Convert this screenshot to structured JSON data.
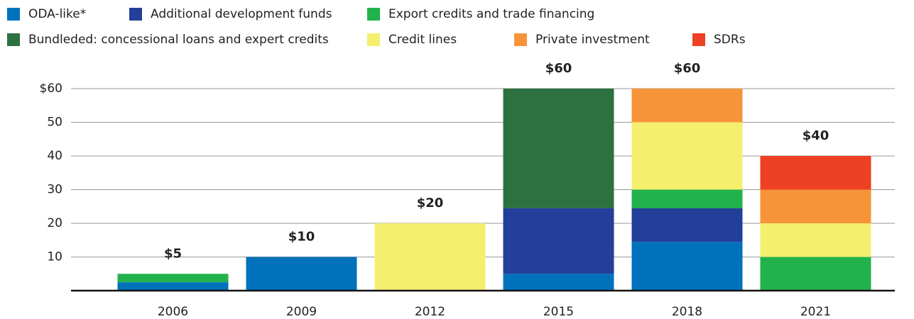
{
  "chart_data": {
    "type": "stacked_bar",
    "categories": [
      "2006",
      "2009",
      "2012",
      "2015",
      "2018",
      "2021"
    ],
    "series": [
      {
        "name": "ODA-like*",
        "color": "#0072bc",
        "values": [
          2.5,
          10,
          0,
          5,
          14.5,
          0
        ]
      },
      {
        "name": "Additional development funds",
        "color": "#233f99",
        "values": [
          0,
          0,
          0,
          19.5,
          10,
          0
        ]
      },
      {
        "name": "Export credits and trade financing",
        "color": "#22b24c",
        "values": [
          2.5,
          0,
          0,
          0,
          5.5,
          10
        ]
      },
      {
        "name": "Bundleded: concessional loans and expert credits",
        "color": "#2d7140",
        "values": [
          0,
          0,
          0,
          35.5,
          0,
          0
        ]
      },
      {
        "name": "Credit lines",
        "color": "#f5ef70",
        "values": [
          0,
          0,
          20,
          0,
          20,
          10
        ]
      },
      {
        "name": "Private investment",
        "color": "#f7943a",
        "values": [
          0,
          0,
          0,
          0,
          10,
          10
        ]
      },
      {
        "name": "SDRs",
        "color": "#ee4123",
        "values": [
          0,
          0,
          0,
          0,
          0,
          10
        ]
      }
    ],
    "totals": [
      5,
      10,
      20,
      60,
      60,
      40
    ],
    "total_labels": [
      "$5",
      "$10",
      "$20",
      "$60",
      "$60",
      "$40"
    ],
    "ylim": [
      0,
      60
    ],
    "yticks": [
      10,
      20,
      30,
      40,
      50,
      {
        "value": 60,
        "label": "$60"
      }
    ],
    "grid": true
  }
}
